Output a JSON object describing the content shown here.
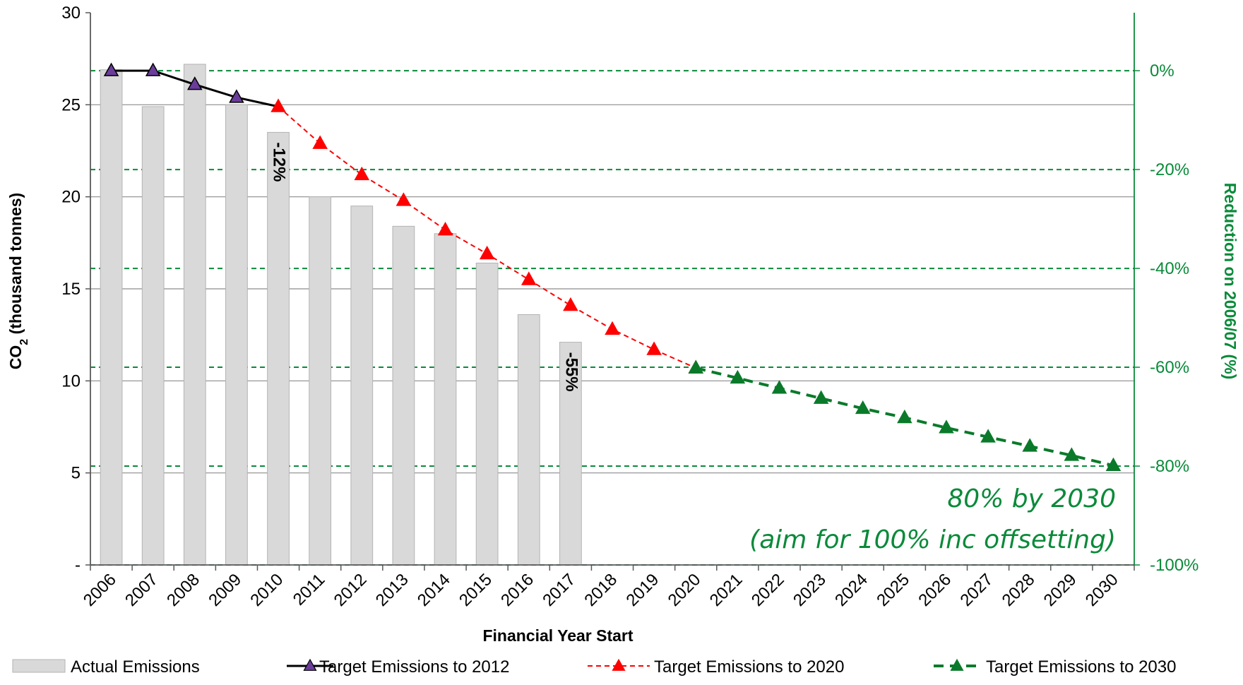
{
  "chart_data": {
    "type": "bar",
    "categories": [
      "2006",
      "2007",
      "2008",
      "2009",
      "2010",
      "2011",
      "2012",
      "2013",
      "2014",
      "2015",
      "2016",
      "2017",
      "2018",
      "2019",
      "2020",
      "2021",
      "2022",
      "2023",
      "2024",
      "2025",
      "2026",
      "2027",
      "2028",
      "2029",
      "2030"
    ],
    "xlabel": "Financial Year Start",
    "ylabel_main": "CO",
    "ylabel_sub": "2",
    "ylabel_rest": " (thousand tonnes)",
    "y2label": "Reduction on 2006/07 (%)",
    "ylim": [
      0,
      30
    ],
    "y_ticks": [
      {
        "value": 0,
        "label": "-"
      },
      {
        "value": 5,
        "label": "5"
      },
      {
        "value": 10,
        "label": "10"
      },
      {
        "value": 15,
        "label": "15"
      },
      {
        "value": 20,
        "label": "20"
      },
      {
        "value": 25,
        "label": "25"
      },
      {
        "value": 30,
        "label": "30"
      }
    ],
    "y2lim": [
      -100,
      0
    ],
    "y2_ticks": [
      {
        "value": 0,
        "label": "0%"
      },
      {
        "value": -20,
        "label": "-20%"
      },
      {
        "value": -40,
        "label": "-40%"
      },
      {
        "value": -60,
        "label": "-60%"
      },
      {
        "value": -80,
        "label": "-80%"
      },
      {
        "value": -100,
        "label": "-100%"
      }
    ],
    "grid": true,
    "legend_position": "bottom",
    "series": [
      {
        "name": "Actual Emissions",
        "type": "bar",
        "color": "#d9d9d9",
        "values": [
          26.9,
          24.9,
          27.2,
          25.0,
          23.5,
          20.0,
          19.5,
          18.4,
          18.0,
          16.4,
          13.6,
          12.1,
          null,
          null,
          null,
          null,
          null,
          null,
          null,
          null,
          null,
          null,
          null,
          null,
          null
        ]
      },
      {
        "name": "Target Emissions to 2012",
        "type": "line",
        "color": "#000000",
        "marker_fill": "#6a3d9a",
        "values": [
          26.85,
          26.85,
          26.1,
          25.4,
          24.9,
          null,
          null,
          null,
          null,
          null,
          null,
          null,
          null,
          null,
          null,
          null,
          null,
          null,
          null,
          null,
          null,
          null,
          null,
          null,
          null
        ]
      },
      {
        "name": "Target Emissions to 2020",
        "type": "line",
        "color": "#ff0000",
        "marker_fill": "#ff0000",
        "values": [
          null,
          null,
          null,
          null,
          24.9,
          22.9,
          21.2,
          19.8,
          18.2,
          16.9,
          15.5,
          14.1,
          12.8,
          11.7,
          10.7,
          null,
          null,
          null,
          null,
          null,
          null,
          null,
          null,
          null,
          null
        ]
      },
      {
        "name": "Target Emissions to 2030",
        "type": "line",
        "color": "#0a7a2a",
        "marker_fill": "#0a7a2a",
        "values": [
          null,
          null,
          null,
          null,
          null,
          null,
          null,
          null,
          null,
          null,
          null,
          null,
          null,
          null,
          10.7,
          10.15,
          9.6,
          9.05,
          8.5,
          8.0,
          7.45,
          6.95,
          6.45,
          5.95,
          5.4
        ]
      }
    ],
    "annotations": [
      {
        "text": "-12%",
        "category": "2010"
      },
      {
        "text": "-55%",
        "category": "2017"
      }
    ],
    "note_line1": "80% by 2030",
    "note_line2": "(aim for 100% inc offsetting)"
  }
}
